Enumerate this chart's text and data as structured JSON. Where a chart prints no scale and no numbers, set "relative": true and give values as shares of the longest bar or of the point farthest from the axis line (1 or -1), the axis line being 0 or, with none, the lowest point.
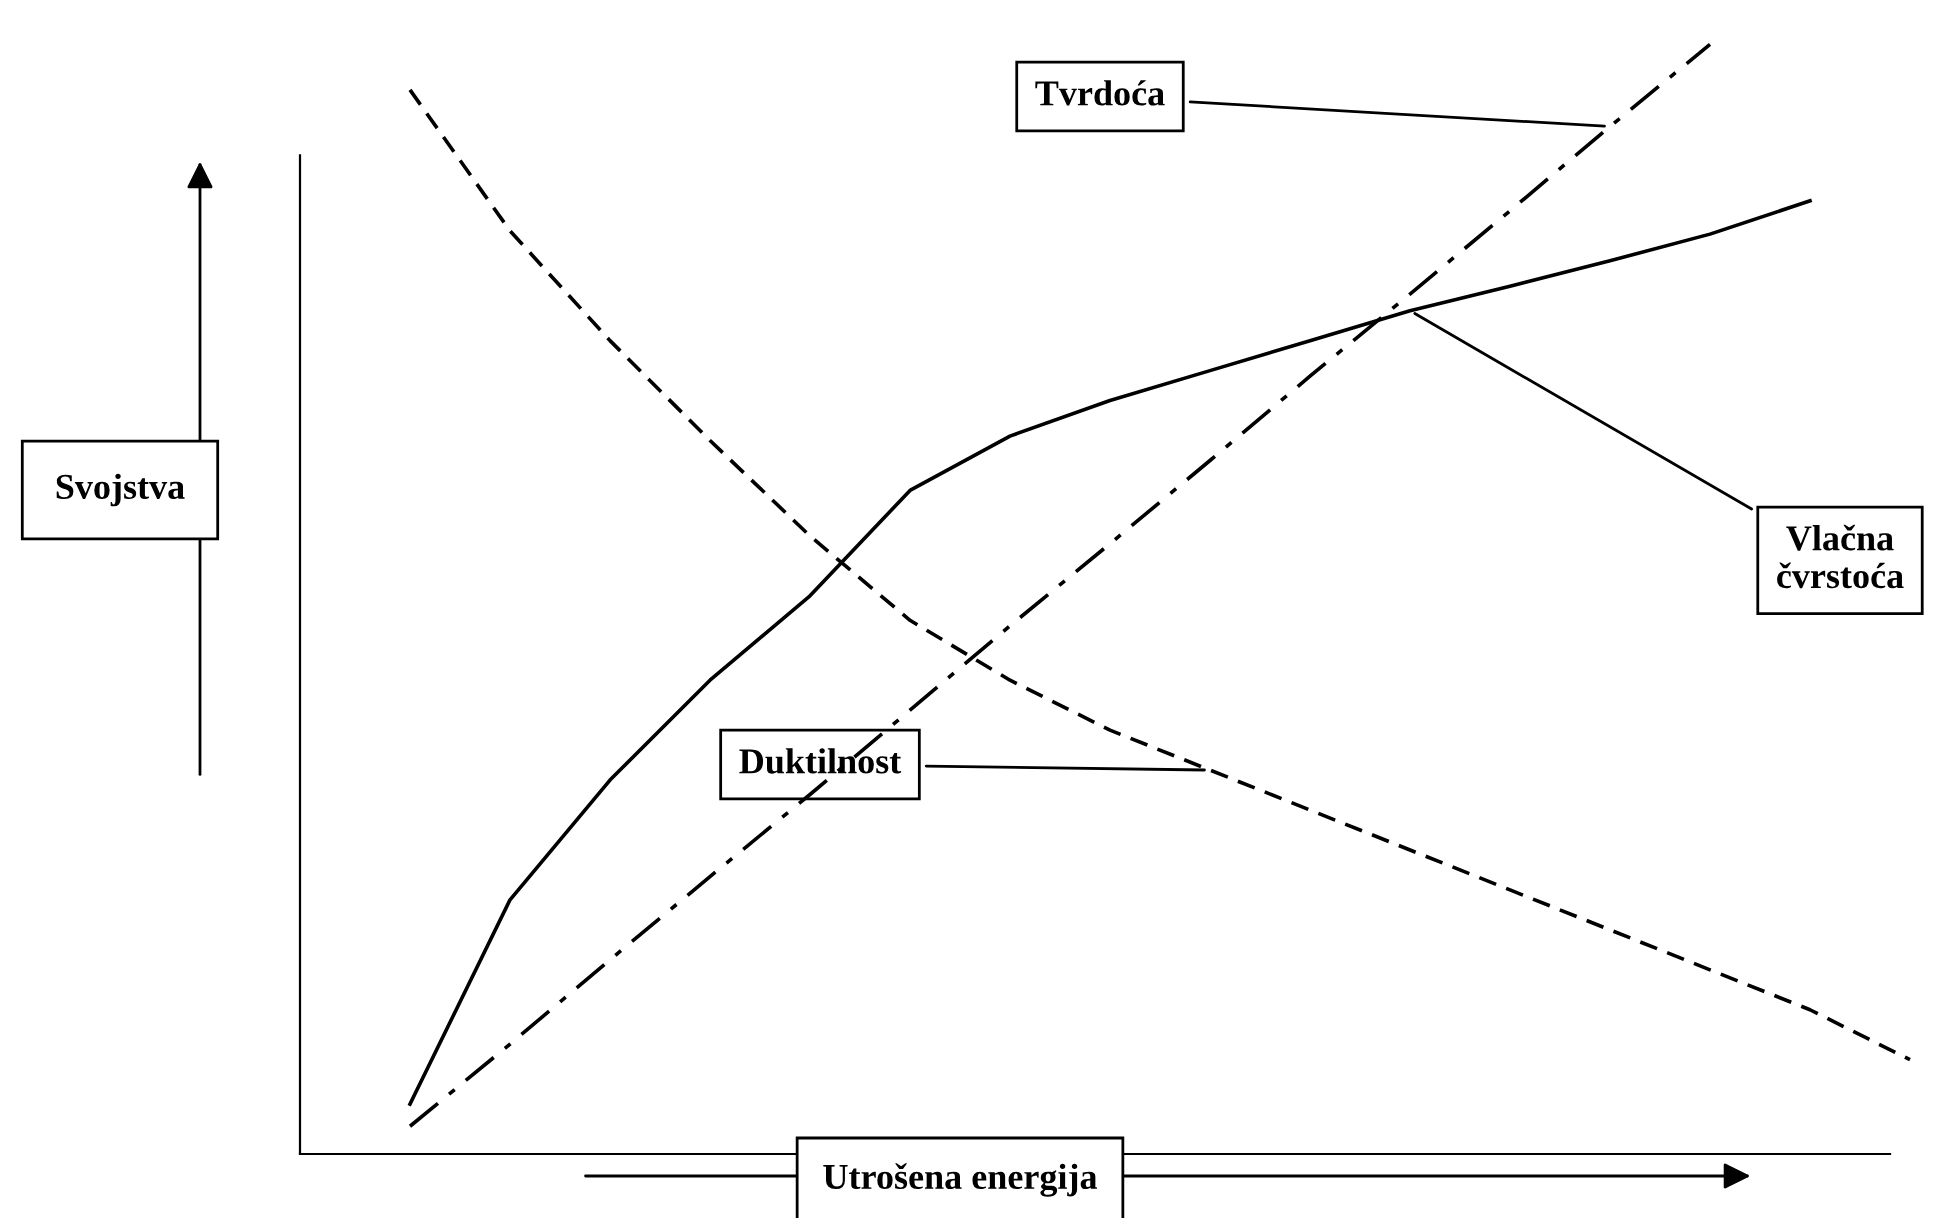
{
  "chart_data": {
    "type": "line",
    "relative": true,
    "xlabel": "Utrošena energija",
    "ylabel": "Svojstva",
    "legend": false,
    "marker": "none",
    "categories": [
      null,
      null,
      null,
      null,
      null,
      null,
      null,
      null,
      null,
      null,
      null,
      null,
      null,
      null,
      null,
      null
    ],
    "series": [
      {
        "name": "Tvrdoća",
        "color": "#000000",
        "line_style": "dashdot",
        "values": [
          0.025,
          0.099,
          0.175,
          0.25,
          0.324,
          0.4,
          0.476,
          0.55,
          0.625,
          0.701,
          0.775,
          0.85,
          0.926,
          1.0,
          null,
          null
        ]
      },
      {
        "name": "Vlačna čvrstoća",
        "color": "#000000",
        "line_style": "solid",
        "values": [
          0.045,
          0.229,
          0.337,
          0.427,
          0.503,
          0.598,
          0.647,
          0.679,
          0.706,
          0.733,
          0.76,
          0.782,
          0.805,
          0.829,
          0.859,
          null
        ]
      },
      {
        "name": "Duktilnost",
        "color": "#000000",
        "line_style": "dashed",
        "values": [
          0.959,
          0.832,
          0.733,
          0.643,
          0.557,
          0.481,
          0.427,
          0.382,
          0.346,
          0.31,
          0.274,
          0.238,
          0.202,
          0.166,
          0.13,
          0.085
        ]
      }
    ]
  }
}
